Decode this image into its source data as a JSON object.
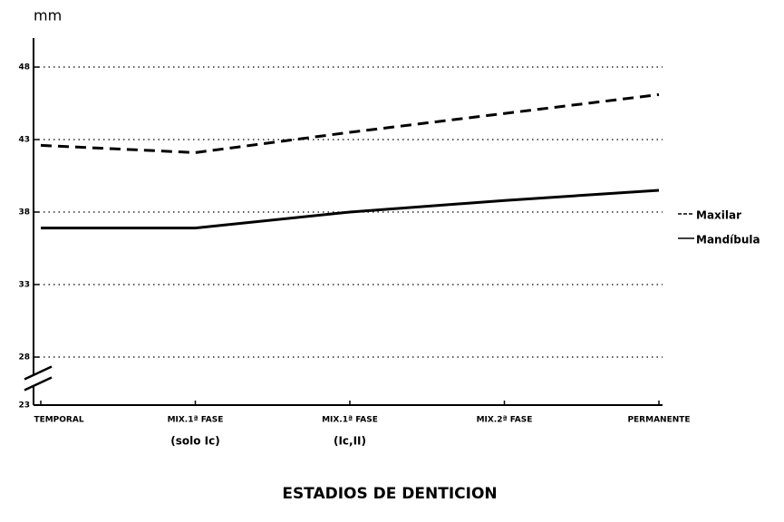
{
  "chart_data": {
    "type": "line",
    "y_unit": "mm",
    "x_axis_title": "ESTADIOS DE DENTICION",
    "categories": [
      "TEMPORAL",
      "MIX.1ª FASE",
      "MIX.1ª FASE",
      "MIX.2ª FASE",
      "PERMANENTE"
    ],
    "category_sublabels": [
      null,
      "(solo Ic)",
      "(Ic,II)",
      null,
      null
    ],
    "series": [
      {
        "name": "Maxilar",
        "color": "#000000",
        "dash": "dashed",
        "values": [
          42.6,
          42.1,
          43.5,
          44.8,
          46.1
        ]
      },
      {
        "name": "Mandíbula",
        "color": "#000000",
        "dash": "solid",
        "values": [
          36.9,
          36.9,
          38.0,
          38.8,
          39.5
        ]
      }
    ],
    "ylim": [
      23,
      50
    ],
    "yticks": [
      23,
      28,
      33,
      38,
      43,
      48
    ],
    "y_axis_break": [
      23,
      28
    ],
    "grid": true,
    "legend": "right"
  }
}
